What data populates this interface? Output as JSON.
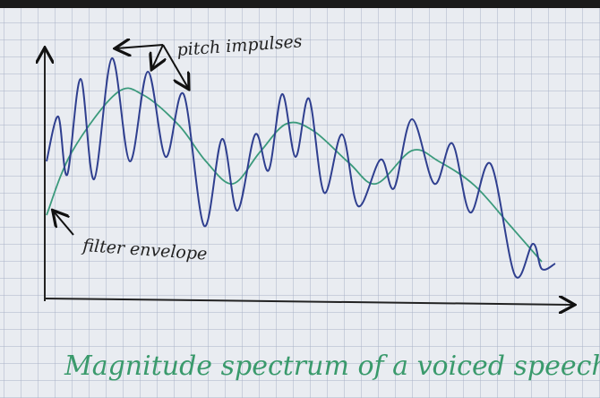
{
  "annotations": {
    "pitch": "pitch impulses",
    "envelope": "filter envelope"
  },
  "caption": "Magnitude spectrum of a voiced speech"
}
